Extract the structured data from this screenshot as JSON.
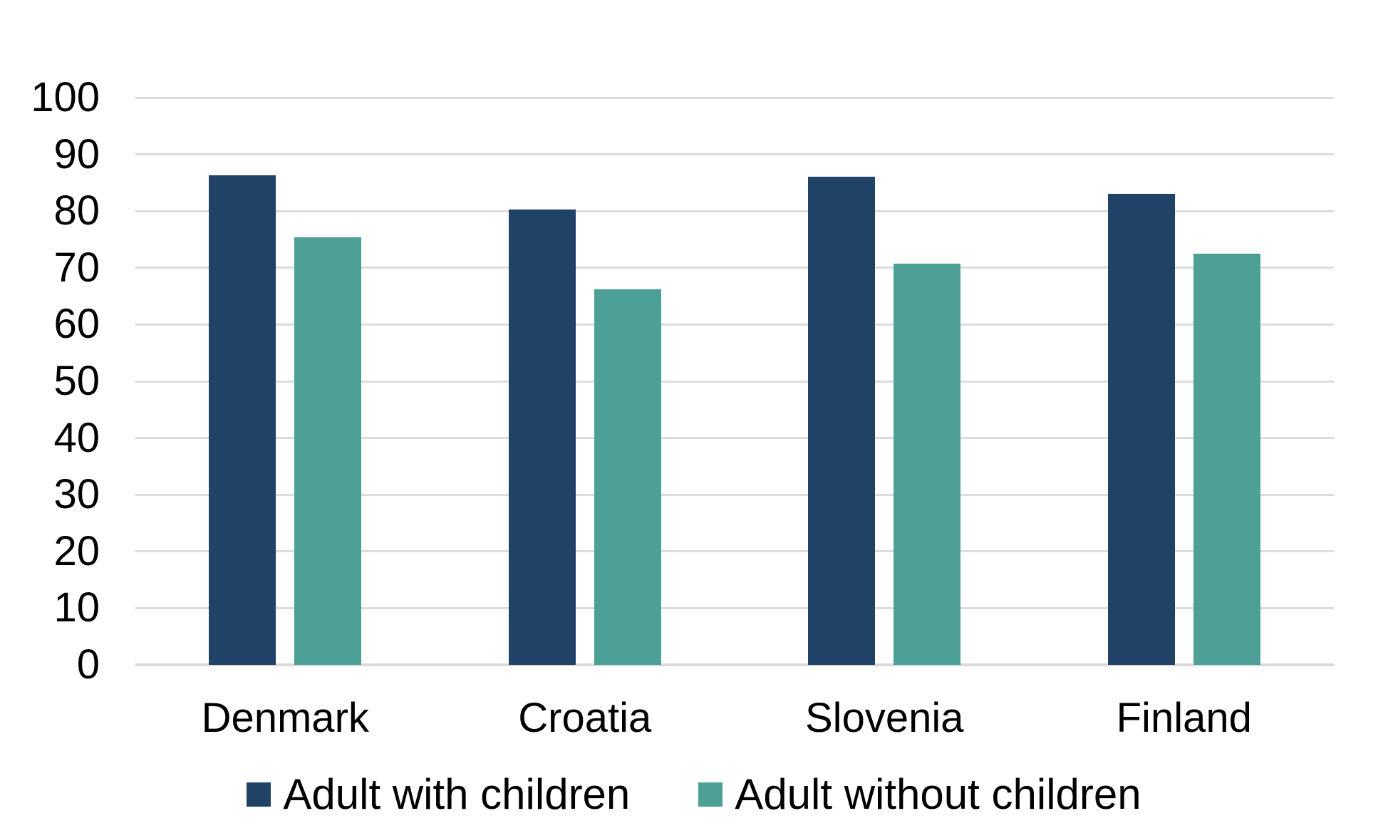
{
  "chart_data": {
    "type": "bar",
    "title": "",
    "xlabel": "",
    "ylabel": "",
    "categories": [
      "Denmark",
      "Croatia",
      "Slovenia",
      "Finland"
    ],
    "series": [
      {
        "name": "Adult with children",
        "color": "#1f4266",
        "values": [
          86.3,
          80.3,
          86.0,
          83.0
        ]
      },
      {
        "name": "Adult without children",
        "color": "#4da096",
        "values": [
          75.4,
          66.2,
          70.7,
          72.5
        ]
      }
    ],
    "ylim": [
      0,
      100
    ],
    "yticks": [
      0,
      10,
      20,
      30,
      40,
      50,
      60,
      70,
      80,
      90,
      100
    ],
    "grid": "horizontal",
    "gridline_color": "#dcdcdc",
    "axis_line_color": "#d9d9d9",
    "text_color": "#000000",
    "background_color": "#ffffff",
    "legend_position": "bottom"
  }
}
